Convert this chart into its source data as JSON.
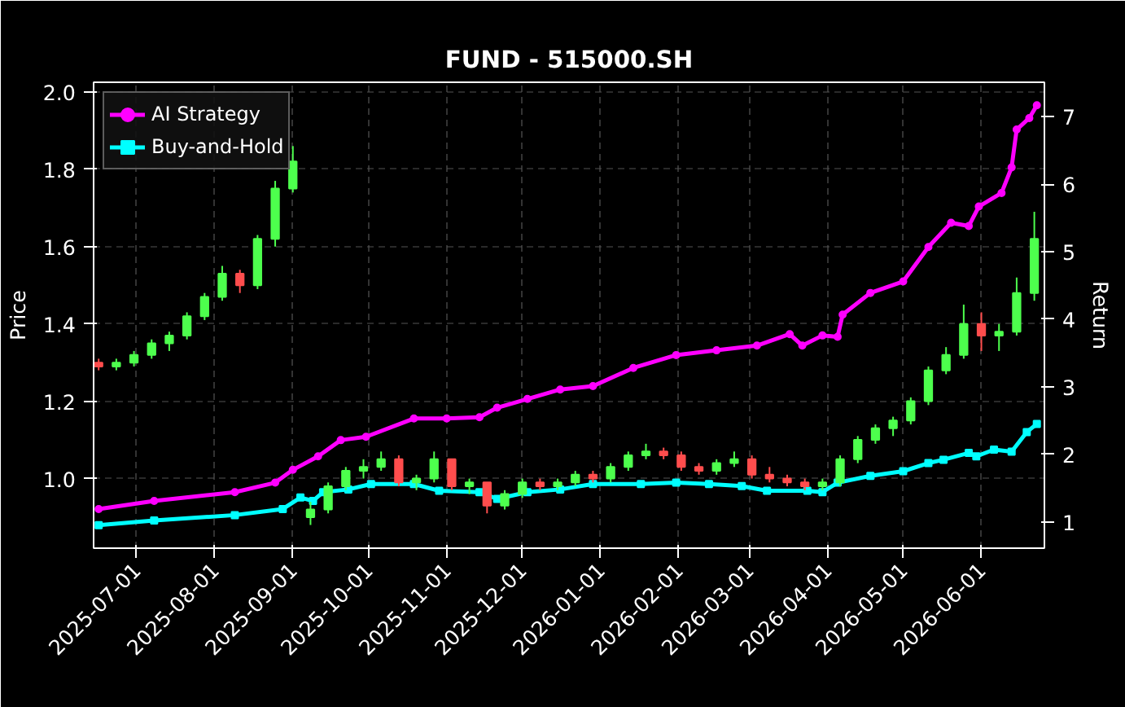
{
  "chart_data": {
    "type": "candlestick",
    "title": "FUND - 515000.SH",
    "ylabel": "Price",
    "y2label": "Return",
    "x": [
      "2025-06-16",
      "2025-06-23",
      "2025-06-30",
      "2025-07-07",
      "2025-07-14",
      "2025-07-21",
      "2025-07-28",
      "2025-08-04",
      "2025-08-11",
      "2025-08-18",
      "2025-08-25",
      "2025-09-01",
      "2025-09-08",
      "2025-09-15",
      "2025-09-22",
      "2025-09-29",
      "2025-10-06",
      "2025-10-13",
      "2025-10-20",
      "2025-10-27",
      "2025-11-03",
      "2025-11-10",
      "2025-11-17",
      "2025-11-24",
      "2025-12-01",
      "2025-12-08",
      "2025-12-15",
      "2025-12-22",
      "2025-12-29",
      "2026-01-05",
      "2026-01-12",
      "2026-01-19",
      "2026-01-26",
      "2026-02-02",
      "2026-02-09",
      "2026-02-16",
      "2026-02-23",
      "2026-03-02",
      "2026-03-09",
      "2026-03-16",
      "2026-03-23",
      "2026-03-30",
      "2026-04-06",
      "2026-04-13",
      "2026-04-20",
      "2026-04-27",
      "2026-05-04",
      "2026-05-11",
      "2026-05-18",
      "2026-05-25",
      "2026-06-01",
      "2026-06-08",
      "2026-06-15",
      "2026-06-22"
    ],
    "ohlc": [
      [
        1.3,
        1.31,
        1.28,
        1.29
      ],
      [
        1.29,
        1.31,
        1.28,
        1.3
      ],
      [
        1.3,
        1.33,
        1.29,
        1.32
      ],
      [
        1.32,
        1.36,
        1.31,
        1.35
      ],
      [
        1.35,
        1.38,
        1.33,
        1.37
      ],
      [
        1.37,
        1.43,
        1.36,
        1.42
      ],
      [
        1.42,
        1.48,
        1.41,
        1.47
      ],
      [
        1.47,
        1.55,
        1.46,
        1.53
      ],
      [
        1.53,
        1.54,
        1.48,
        1.5
      ],
      [
        1.5,
        1.63,
        1.49,
        1.62
      ],
      [
        1.62,
        1.77,
        1.6,
        1.75
      ],
      [
        1.75,
        1.86,
        1.74,
        1.82
      ],
      [
        0.9,
        0.94,
        0.88,
        0.92
      ],
      [
        0.92,
        0.99,
        0.91,
        0.98
      ],
      [
        0.98,
        1.03,
        0.97,
        1.02
      ],
      [
        1.02,
        1.05,
        1.0,
        1.03
      ],
      [
        1.03,
        1.07,
        1.02,
        1.05
      ],
      [
        1.05,
        1.06,
        0.98,
        0.99
      ],
      [
        0.99,
        1.01,
        0.97,
        1.0
      ],
      [
        1.0,
        1.07,
        0.99,
        1.05
      ],
      [
        1.05,
        1.05,
        0.97,
        0.98
      ],
      [
        0.98,
        1.0,
        0.96,
        0.99
      ],
      [
        0.99,
        0.99,
        0.91,
        0.93
      ],
      [
        0.93,
        0.97,
        0.92,
        0.96
      ],
      [
        0.96,
        1.0,
        0.95,
        0.99
      ],
      [
        0.99,
        1.0,
        0.97,
        0.98
      ],
      [
        0.98,
        1.0,
        0.97,
        0.99
      ],
      [
        0.99,
        1.02,
        0.98,
        1.01
      ],
      [
        1.01,
        1.02,
        0.99,
        1.0
      ],
      [
        1.0,
        1.04,
        0.99,
        1.03
      ],
      [
        1.03,
        1.07,
        1.02,
        1.06
      ],
      [
        1.06,
        1.09,
        1.05,
        1.07
      ],
      [
        1.07,
        1.08,
        1.05,
        1.06
      ],
      [
        1.06,
        1.07,
        1.02,
        1.03
      ],
      [
        1.03,
        1.04,
        1.01,
        1.02
      ],
      [
        1.02,
        1.05,
        1.01,
        1.04
      ],
      [
        1.04,
        1.07,
        1.03,
        1.05
      ],
      [
        1.05,
        1.06,
        1.0,
        1.01
      ],
      [
        1.01,
        1.03,
        0.99,
        1.0
      ],
      [
        1.0,
        1.01,
        0.98,
        0.99
      ],
      [
        0.99,
        1.0,
        0.97,
        0.98
      ],
      [
        0.98,
        1.0,
        0.97,
        0.99
      ],
      [
        0.99,
        1.06,
        0.98,
        1.05
      ],
      [
        1.05,
        1.11,
        1.04,
        1.1
      ],
      [
        1.1,
        1.14,
        1.09,
        1.13
      ],
      [
        1.13,
        1.16,
        1.11,
        1.15
      ],
      [
        1.15,
        1.21,
        1.14,
        1.2
      ],
      [
        1.2,
        1.29,
        1.19,
        1.28
      ],
      [
        1.28,
        1.34,
        1.27,
        1.32
      ],
      [
        1.32,
        1.45,
        1.31,
        1.4
      ],
      [
        1.4,
        1.43,
        1.33,
        1.37
      ],
      [
        1.37,
        1.4,
        1.33,
        1.38
      ],
      [
        1.38,
        1.52,
        1.37,
        1.48
      ],
      [
        1.48,
        1.69,
        1.46,
        1.62
      ]
    ],
    "colors": [
      "#ff4d4d",
      "#4dff4d",
      "#4dff4d",
      "#4dff4d",
      "#4dff4d",
      "#4dff4d",
      "#4dff4d",
      "#4dff4d",
      "#ff4d4d",
      "#4dff4d",
      "#4dff4d",
      "#4dff4d",
      "#4dff4d",
      "#4dff4d",
      "#4dff4d",
      "#4dff4d",
      "#4dff4d",
      "#ff4d4d",
      "#4dff4d",
      "#4dff4d",
      "#ff4d4d",
      "#4dff4d",
      "#ff4d4d",
      "#4dff4d",
      "#4dff4d",
      "#ff4d4d",
      "#4dff4d",
      "#4dff4d",
      "#ff4d4d",
      "#4dff4d",
      "#4dff4d",
      "#4dff4d",
      "#ff4d4d",
      "#ff4d4d",
      "#ff4d4d",
      "#4dff4d",
      "#4dff4d",
      "#ff4d4d",
      "#ff4d4d",
      "#ff4d4d",
      "#ff4d4d",
      "#4dff4d",
      "#4dff4d",
      "#4dff4d",
      "#4dff4d",
      "#4dff4d",
      "#4dff4d",
      "#4dff4d",
      "#4dff4d",
      "#4dff4d",
      "#ff4d4d",
      "#4dff4d",
      "#4dff4d",
      "#4dff4d"
    ],
    "series": [
      {
        "name": "AI Strategy",
        "color": "#ff00ff",
        "type": "line",
        "axis": "y2",
        "marker": "circle",
        "x": [
          "2025-06-16",
          "2025-07-08",
          "2025-08-09",
          "2025-08-25",
          "2025-09-01",
          "2025-09-11",
          "2025-09-20",
          "2025-09-30",
          "2025-10-19",
          "2025-11-01",
          "2025-11-14",
          "2025-11-21",
          "2025-12-03",
          "2025-12-16",
          "2025-12-29",
          "2026-01-14",
          "2026-01-31",
          "2026-02-16",
          "2026-03-04",
          "2026-03-17",
          "2026-03-22",
          "2026-03-30",
          "2026-04-05",
          "2026-04-07",
          "2026-04-18",
          "2026-05-01",
          "2026-05-11",
          "2026-05-20",
          "2026-05-27",
          "2026-05-31",
          "2026-06-09",
          "2026-06-13",
          "2026-06-15",
          "2026-06-20",
          "2026-06-23"
        ],
        "values": [
          1.19,
          1.31,
          1.44,
          1.58,
          1.77,
          1.97,
          2.21,
          2.26,
          2.53,
          2.53,
          2.55,
          2.69,
          2.82,
          2.96,
          3.01,
          3.28,
          3.47,
          3.54,
          3.61,
          3.78,
          3.61,
          3.76,
          3.74,
          4.07,
          4.39,
          4.56,
          5.07,
          5.43,
          5.38,
          5.67,
          5.87,
          6.25,
          6.81,
          6.98,
          7.17
        ]
      },
      {
        "name": "Buy-and-Hold",
        "color": "#00ffff",
        "type": "line",
        "axis": "y2",
        "marker": "square",
        "x": [
          "2025-06-16",
          "2025-07-08",
          "2025-08-09",
          "2025-08-28",
          "2025-09-04",
          "2025-09-09",
          "2025-09-13",
          "2025-09-23",
          "2025-10-02",
          "2025-10-19",
          "2025-10-29",
          "2025-11-14",
          "2025-11-21",
          "2025-12-03",
          "2025-12-16",
          "2025-12-29",
          "2026-01-17",
          "2026-01-31",
          "2026-02-13",
          "2026-02-26",
          "2026-03-08",
          "2026-03-24",
          "2026-03-30",
          "2026-04-05",
          "2026-04-18",
          "2026-05-01",
          "2026-05-11",
          "2026-05-17",
          "2026-05-27",
          "2026-05-30",
          "2026-06-06",
          "2026-06-13",
          "2026-06-19",
          "2026-06-23"
        ],
        "values": [
          0.95,
          1.02,
          1.1,
          1.19,
          1.36,
          1.31,
          1.44,
          1.48,
          1.56,
          1.56,
          1.46,
          1.44,
          1.34,
          1.44,
          1.48,
          1.56,
          1.56,
          1.58,
          1.56,
          1.53,
          1.46,
          1.46,
          1.44,
          1.58,
          1.68,
          1.75,
          1.87,
          1.92,
          2.02,
          1.97,
          2.07,
          2.04,
          2.33,
          2.45
        ]
      }
    ],
    "xlim": [
      "2025-06-14",
      "2026-06-26"
    ],
    "xticks": [
      "2025-07-01",
      "2025-08-01",
      "2025-09-01",
      "2025-10-01",
      "2025-11-01",
      "2025-12-01",
      "2026-01-01",
      "2026-02-01",
      "2026-03-01",
      "2026-04-01",
      "2026-05-01",
      "2026-06-01"
    ],
    "ylim": [
      0.82,
      2.025
    ],
    "yticks": [
      {
        "value": 1.0,
        "label": "1.0"
      },
      {
        "value": 1.2,
        "label": "1.2"
      },
      {
        "value": 1.4,
        "label": "1.4"
      },
      {
        "value": 1.6,
        "label": "1.6"
      },
      {
        "value": 1.8,
        "label": "1.8"
      },
      {
        "value": 2.0,
        "label": "2.0"
      }
    ],
    "y2lim": [
      0.61,
      7.51
    ],
    "y2ticks": [
      1,
      2,
      3,
      4,
      5,
      6,
      7
    ],
    "grid": true,
    "legend": "top left"
  }
}
